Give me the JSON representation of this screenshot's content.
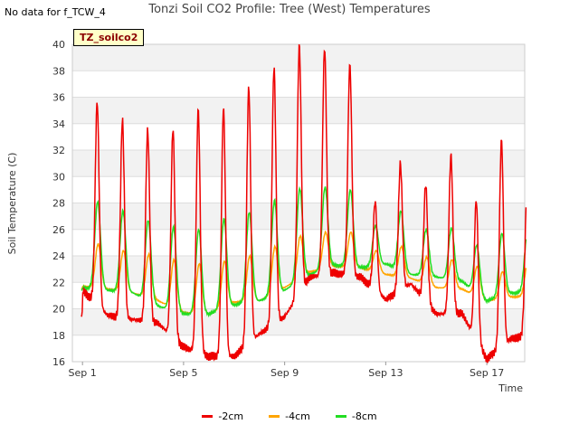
{
  "header": {
    "nodata_label": "No data for f_TCW_4",
    "tag_label": "TZ_soilco2"
  },
  "chart_data": {
    "type": "line",
    "title": "Tonzi Soil CO2 Profile: Tree (West) Temperatures",
    "xlabel": "Time",
    "ylabel": "Soil Temperature (C)",
    "xlim_days": [
      0.6,
      18.5
    ],
    "ylim": [
      16,
      40
    ],
    "y_ticks": [
      16,
      18,
      20,
      22,
      24,
      26,
      28,
      30,
      32,
      34,
      36,
      38,
      40
    ],
    "x_ticks": [
      {
        "day": 1,
        "label": "Sep 1"
      },
      {
        "day": 5,
        "label": "Sep 5"
      },
      {
        "day": 9,
        "label": "Sep 9"
      },
      {
        "day": 13,
        "label": "Sep 13"
      },
      {
        "day": 17,
        "label": "Sep 17"
      }
    ],
    "grid": true,
    "legend_position": "bottom",
    "daily": {
      "days": [
        1,
        2,
        3,
        4,
        5,
        6,
        7,
        8,
        9,
        10,
        11,
        12,
        13,
        14,
        15,
        16,
        17,
        18
      ],
      "minus2cm_min": [
        21.4,
        19.5,
        19.2,
        18.9,
        17.1,
        16.4,
        16.4,
        18.1,
        19.4,
        22.4,
        22.7,
        22.4,
        20.7,
        21.9,
        19.6,
        19.7,
        16.2,
        17.8
      ],
      "minus2cm_max": [
        35.6,
        34.3,
        33.5,
        33.6,
        35.1,
        35.2,
        36.7,
        38.3,
        39.9,
        39.7,
        38.5,
        28.1,
        31.0,
        29.4,
        31.6,
        28.2,
        32.8,
        28.2
      ],
      "minus4cm_min": [
        21.7,
        21.5,
        21.2,
        20.6,
        19.7,
        19.6,
        20.5,
        20.6,
        21.6,
        22.8,
        23.2,
        23.1,
        22.6,
        22.3,
        21.6,
        21.5,
        20.6,
        20.9
      ],
      "minus4cm_max": [
        24.9,
        24.4,
        24.1,
        23.7,
        23.4,
        23.6,
        24.0,
        24.7,
        25.5,
        25.8,
        25.8,
        24.4,
        24.7,
        23.9,
        23.7,
        23.2,
        22.8,
        23.5
      ],
      "minus8cm_min": [
        21.6,
        21.4,
        21.2,
        20.2,
        19.6,
        19.6,
        20.3,
        20.6,
        21.4,
        22.6,
        23.3,
        23.1,
        23.4,
        22.6,
        22.4,
        22.1,
        20.6,
        21.2
      ],
      "minus8cm_max": [
        28.1,
        27.4,
        26.7,
        26.2,
        26.0,
        26.8,
        27.3,
        28.2,
        29.1,
        29.2,
        29.0,
        26.3,
        27.4,
        26.0,
        26.1,
        24.8,
        25.7,
        25.6
      ]
    },
    "series": [
      {
        "name": "-2cm",
        "color": "#ee0000"
      },
      {
        "name": "-4cm",
        "color": "#ffa500"
      },
      {
        "name": "-8cm",
        "color": "#22dd22"
      }
    ]
  }
}
